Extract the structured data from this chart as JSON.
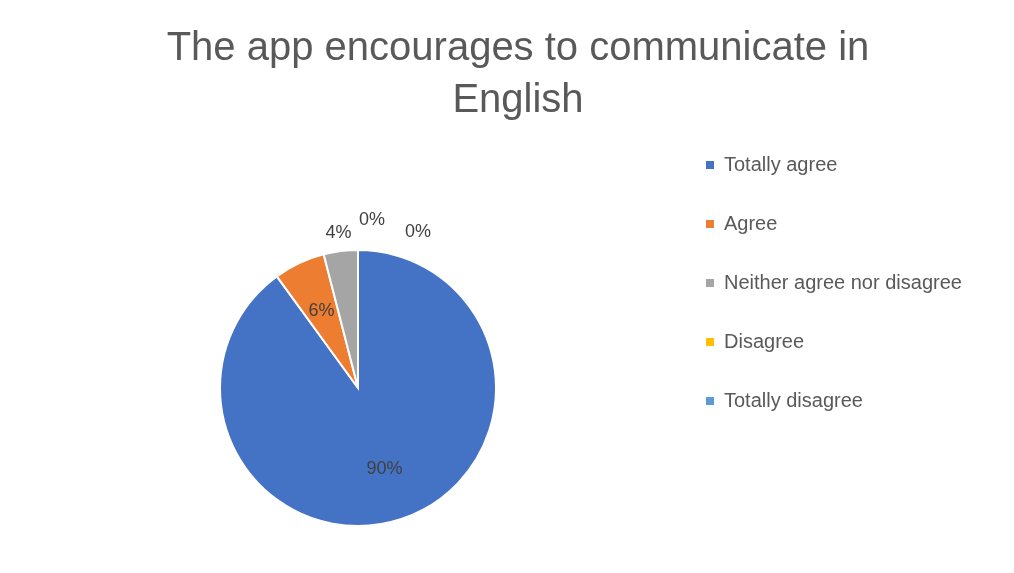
{
  "chart_data": {
    "type": "pie",
    "title": "The app encourages to communicate in English",
    "categories": [
      "Totally agree",
      "Agree",
      "Neither agree nor disagree",
      "Disagree",
      "Totally disagree"
    ],
    "values": [
      90,
      6,
      4,
      0,
      0
    ],
    "colors": [
      "#4472c4",
      "#ed7d31",
      "#a5a5a5",
      "#ffc000",
      "#5b9bd5"
    ],
    "value_labels": [
      "90%",
      "6%",
      "4%",
      "0%",
      "0%"
    ],
    "legend": "right"
  }
}
